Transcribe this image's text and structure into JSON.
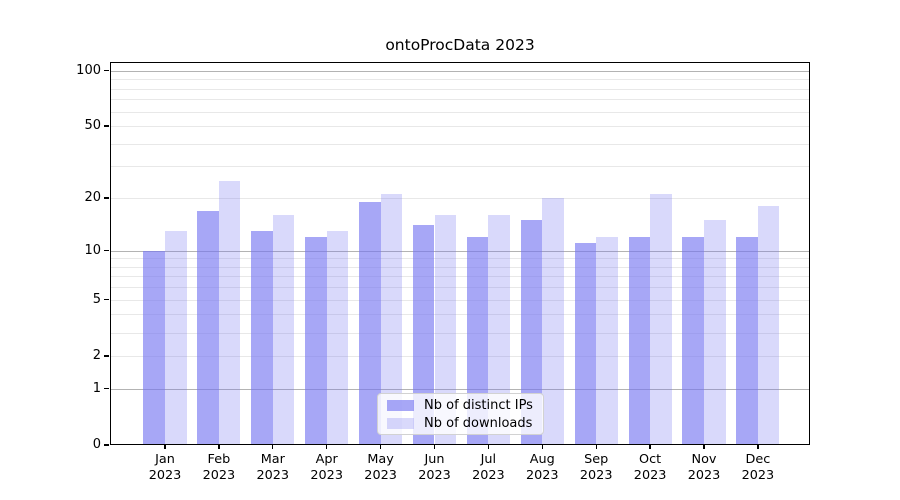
{
  "title": "ontoProcData 2023",
  "colors": {
    "series_ips": "rgba(115,115,240,0.63)",
    "series_downloads": "rgba(115,115,240,0.27)",
    "grid_major": "#b3b3b3",
    "grid_minor": "#e8e8e8",
    "axis": "#000000",
    "background": "#ffffff"
  },
  "legend": {
    "position": "lower center",
    "items": [
      {
        "label": "Nb of distinct IPs"
      },
      {
        "label": "Nb of downloads"
      }
    ]
  },
  "chart_data": {
    "type": "bar",
    "title": "ontoProcData 2023",
    "categories": [
      "Jan 2023",
      "Feb 2023",
      "Mar 2023",
      "Apr 2023",
      "May 2023",
      "Jun 2023",
      "Jul 2023",
      "Aug 2023",
      "Sep 2023",
      "Oct 2023",
      "Nov 2023",
      "Dec 2023"
    ],
    "series": [
      {
        "name": "Nb of distinct IPs",
        "color_key": "series_ips",
        "values": [
          10,
          17,
          13,
          12,
          19,
          14,
          12,
          15,
          11,
          12,
          12,
          12
        ]
      },
      {
        "name": "Nb of downloads",
        "color_key": "series_downloads",
        "values": [
          13,
          25,
          16,
          13,
          21,
          16,
          16,
          20,
          12,
          21,
          15,
          18
        ]
      }
    ],
    "xlabel": "",
    "ylabel": "",
    "yscale": "log1p",
    "ylim": [
      0,
      112
    ],
    "yticks": [
      {
        "value": 0,
        "label": "0"
      },
      {
        "value": 1,
        "label": "1"
      },
      {
        "value": 2,
        "label": "2"
      },
      {
        "value": 5,
        "label": "5"
      },
      {
        "value": 10,
        "label": "10"
      },
      {
        "value": 20,
        "label": "20"
      },
      {
        "value": 50,
        "label": "50"
      },
      {
        "value": 100,
        "label": "100"
      }
    ],
    "major_gridlines": [
      1,
      10,
      100
    ],
    "minor_gridlines": [
      2,
      3,
      4,
      5,
      6,
      7,
      8,
      9,
      20,
      30,
      40,
      50,
      60,
      70,
      80,
      90
    ],
    "grid": true,
    "legend_position": "lower center"
  }
}
